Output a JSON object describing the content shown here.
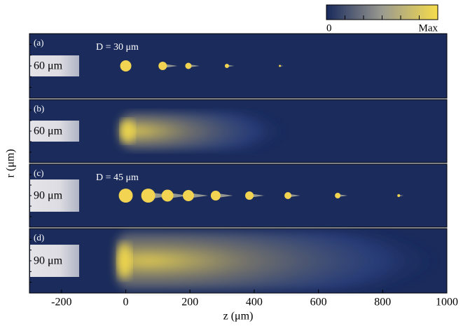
{
  "chart_data": {
    "type": "image",
    "xlabel": "z (μm)",
    "ylabel": "r (μm)",
    "xlim": [
      -300,
      1000
    ],
    "xticks": [
      -200,
      0,
      200,
      400,
      600,
      800,
      1000
    ],
    "colorbar": {
      "min_label": "0",
      "max_label": "Max",
      "colors": [
        "#18295c",
        "#9a9a90",
        "#f6dc4c"
      ]
    },
    "background": "#1a2b5c",
    "panels": [
      {
        "label": "(a)",
        "nozzle": "60 μm",
        "annotation": "D = 30 μm",
        "droplets": [
          0,
          115,
          195,
          315,
          480
        ]
      },
      {
        "label": "(b)",
        "nozzle": "60 μm",
        "plume": [
          -20,
          500
        ]
      },
      {
        "label": "(c)",
        "nozzle": "90 μm",
        "annotation": "D = 45 μm",
        "droplets": [
          0,
          70,
          130,
          195,
          280,
          385,
          505,
          660,
          850
        ]
      },
      {
        "label": "(d)",
        "nozzle": "90 μm",
        "plume": [
          -30,
          980
        ]
      }
    ]
  }
}
